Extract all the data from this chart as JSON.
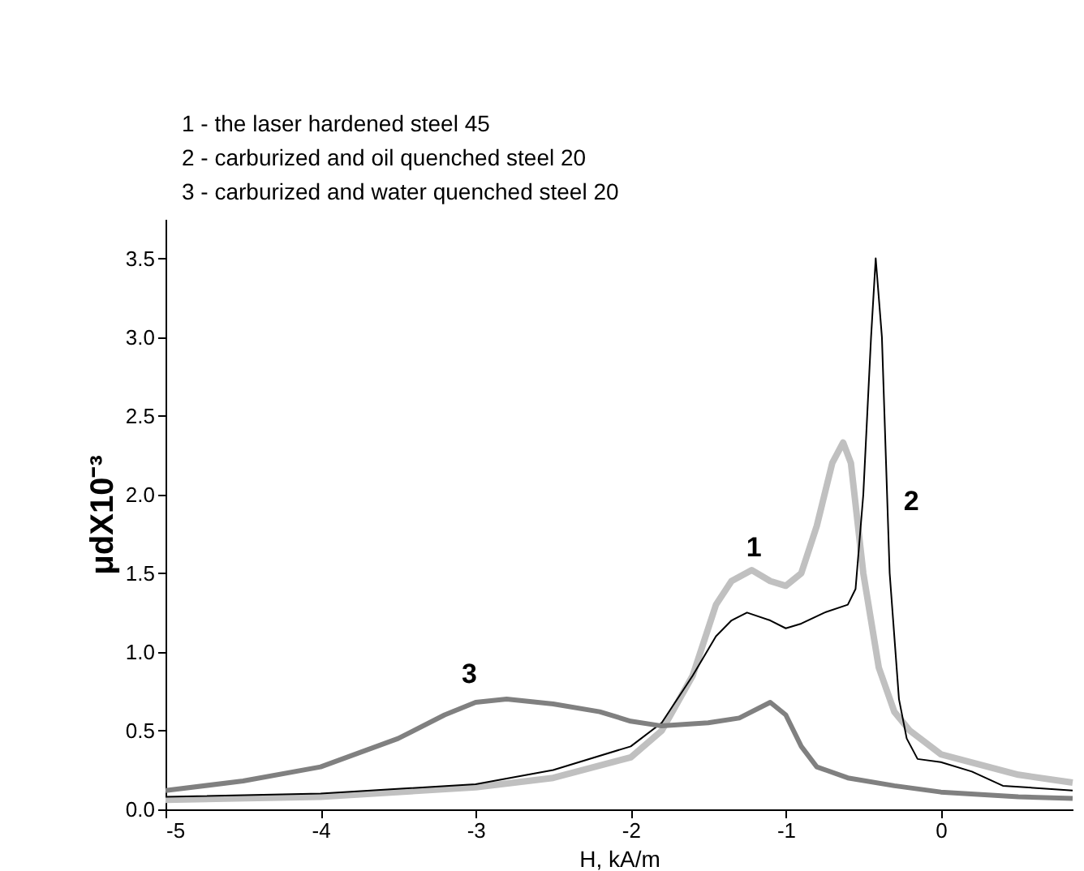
{
  "chart_data": {
    "type": "line",
    "annotations": [
      "1 - the laser hardened steel 45",
      "2 - carburized and oil quenched steel 20",
      "3 - carburized and water quenched steel 20"
    ],
    "xlabel": "H, kA/m",
    "ylabel": "μdX10⁻³",
    "xlim": [
      -5,
      0.85
    ],
    "xticks": [
      -5,
      -4,
      -3,
      -2,
      -1,
      0
    ],
    "ylim": [
      0,
      3.75
    ],
    "yticks": [
      {
        "value": 0,
        "label": "0.0"
      },
      {
        "value": 0.5,
        "label": "0.5"
      },
      {
        "value": 1,
        "label": "1.0"
      },
      {
        "value": 1.5,
        "label": "1.5"
      },
      {
        "value": 2,
        "label": "2.0"
      },
      {
        "value": 2.5,
        "label": "2.5"
      },
      {
        "value": 3,
        "label": "3.0"
      },
      {
        "value": 3.5,
        "label": "3.5"
      }
    ],
    "grid": false,
    "legend": false,
    "marker": "none",
    "line_style": "solid",
    "series": [
      {
        "name": "1",
        "color": "#c0c0c0",
        "x": [
          -5,
          -4,
          -3,
          -2.5,
          -2,
          -1.8,
          -1.6,
          -1.45,
          -1.35,
          -1.22,
          -1.1,
          -1.0,
          -0.9,
          -0.8,
          -0.7,
          -0.63,
          -0.58,
          -0.5,
          -0.4,
          -0.3,
          -0.2,
          0,
          0.5,
          0.85
        ],
        "values": [
          0.06,
          0.08,
          0.14,
          0.2,
          0.33,
          0.5,
          0.85,
          1.3,
          1.45,
          1.52,
          1.45,
          1.42,
          1.5,
          1.8,
          2.2,
          2.33,
          2.2,
          1.5,
          0.9,
          0.62,
          0.5,
          0.35,
          0.22,
          0.17
        ]
      },
      {
        "name": "2",
        "color": "#000000",
        "x": [
          -5,
          -4,
          -3,
          -2.5,
          -2,
          -1.8,
          -1.6,
          -1.45,
          -1.35,
          -1.25,
          -1.1,
          -1.0,
          -0.9,
          -0.75,
          -0.6,
          -0.55,
          -0.5,
          -0.45,
          -0.42,
          -0.38,
          -0.33,
          -0.27,
          -0.22,
          -0.15,
          0,
          0.2,
          0.4,
          0.85
        ],
        "values": [
          0.08,
          0.1,
          0.16,
          0.25,
          0.4,
          0.55,
          0.85,
          1.1,
          1.2,
          1.25,
          1.2,
          1.15,
          1.18,
          1.25,
          1.3,
          1.4,
          2.0,
          3.0,
          3.5,
          3.0,
          1.5,
          0.7,
          0.45,
          0.32,
          0.3,
          0.24,
          0.15,
          0.12
        ]
      },
      {
        "name": "3",
        "color": "#808080",
        "x": [
          -5,
          -4.5,
          -4,
          -3.5,
          -3.2,
          -3,
          -2.8,
          -2.5,
          -2.2,
          -2,
          -1.8,
          -1.5,
          -1.3,
          -1.1,
          -1.0,
          -0.9,
          -0.8,
          -0.6,
          -0.3,
          0,
          0.5,
          0.85
        ],
        "values": [
          0.12,
          0.18,
          0.27,
          0.45,
          0.6,
          0.68,
          0.7,
          0.67,
          0.62,
          0.56,
          0.53,
          0.55,
          0.58,
          0.68,
          0.6,
          0.4,
          0.27,
          0.2,
          0.15,
          0.11,
          0.08,
          0.07
        ]
      }
    ]
  }
}
